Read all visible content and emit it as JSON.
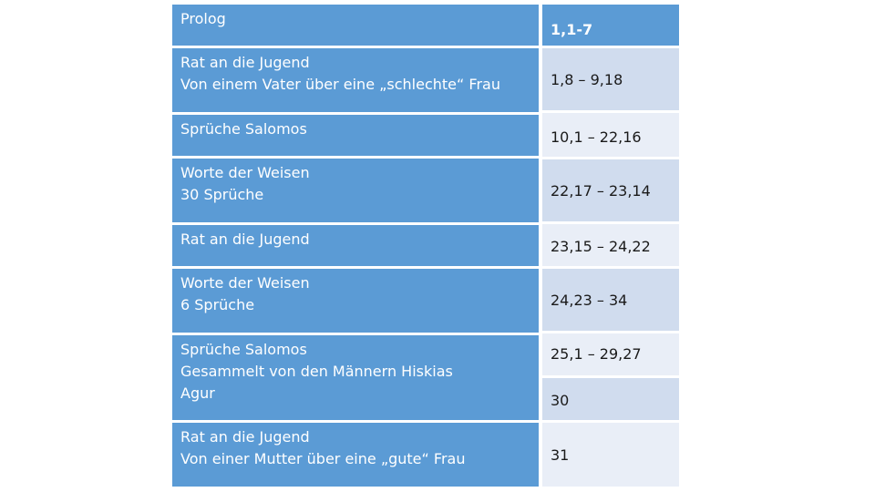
{
  "rows": [
    {
      "left": [
        "Prolog"
      ],
      "right": "1,1-7"
    },
    {
      "left": [
        "Rat an die Jugend",
        "Von einem Vater über eine „schlechte“ Frau"
      ],
      "right": "1,8 – 9,18"
    },
    {
      "left": [
        "Sprüche Salomos"
      ],
      "right": "10,1 – 22,16"
    },
    {
      "left": [
        "Worte der Weisen",
        "30 Sprüche"
      ],
      "right": "22,17 – 23,14"
    },
    {
      "left": [
        "Rat an die Jugend"
      ],
      "right": "23,15 – 24,22"
    },
    {
      "left": [
        "Worte der Weisen",
        "6 Sprüche"
      ],
      "right": "24,23 – 34"
    },
    {
      "left": [
        "Sprüche Salomos",
        "Gesammelt von den Männern Hiskias",
        "Agur"
      ],
      "right": "25,1 – 29,27"
    },
    {
      "left": [
        "Rat an die Jugend",
        "Von einer Mutter über eine „gute“ Frau"
      ],
      "right": "30"
    },
    {
      "right": "31"
    }
  ],
  "colors": {
    "left_band": "#5b9bd5",
    "right_header": "#5b9bd5",
    "right_dark": "#d0dcee",
    "right_light": "#e9eef7",
    "left_text": "#ffffff",
    "right_text": "#1a1a1a"
  }
}
